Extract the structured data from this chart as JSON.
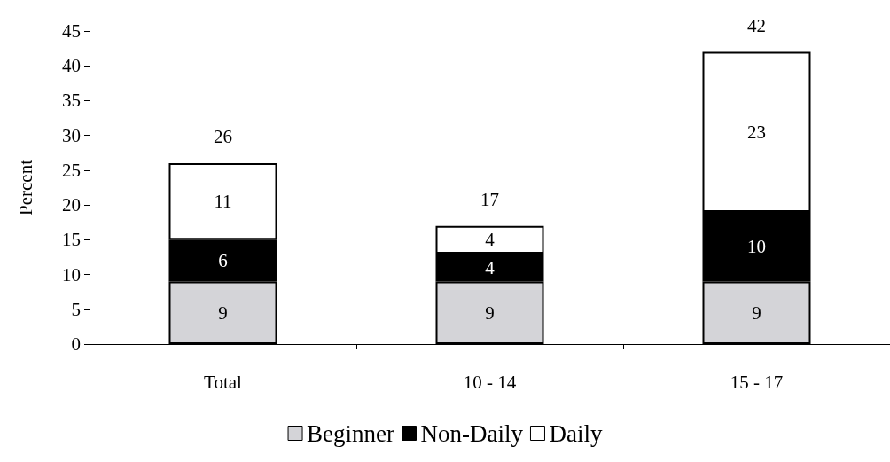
{
  "chart_data": {
    "type": "bar",
    "ylabel": "Percent",
    "categories": [
      "Total",
      "10 - 14",
      "15 - 17"
    ],
    "series": [
      {
        "name": "Beginner",
        "color": "#d4d4d8",
        "values": [
          9,
          9,
          9
        ]
      },
      {
        "name": "Non-Daily",
        "color": "#000000",
        "values": [
          6,
          4,
          10
        ]
      },
      {
        "name": "Daily",
        "color": "#ffffff",
        "values": [
          11,
          4,
          23
        ]
      }
    ],
    "stacked": true,
    "ylim": [
      0,
      45
    ],
    "yticks": [
      0,
      5,
      10,
      15,
      20,
      25,
      30,
      35,
      40,
      45
    ],
    "grid": false,
    "legend": "bottom",
    "data_labels": true,
    "totals": [
      "26",
      "17",
      "42"
    ]
  }
}
